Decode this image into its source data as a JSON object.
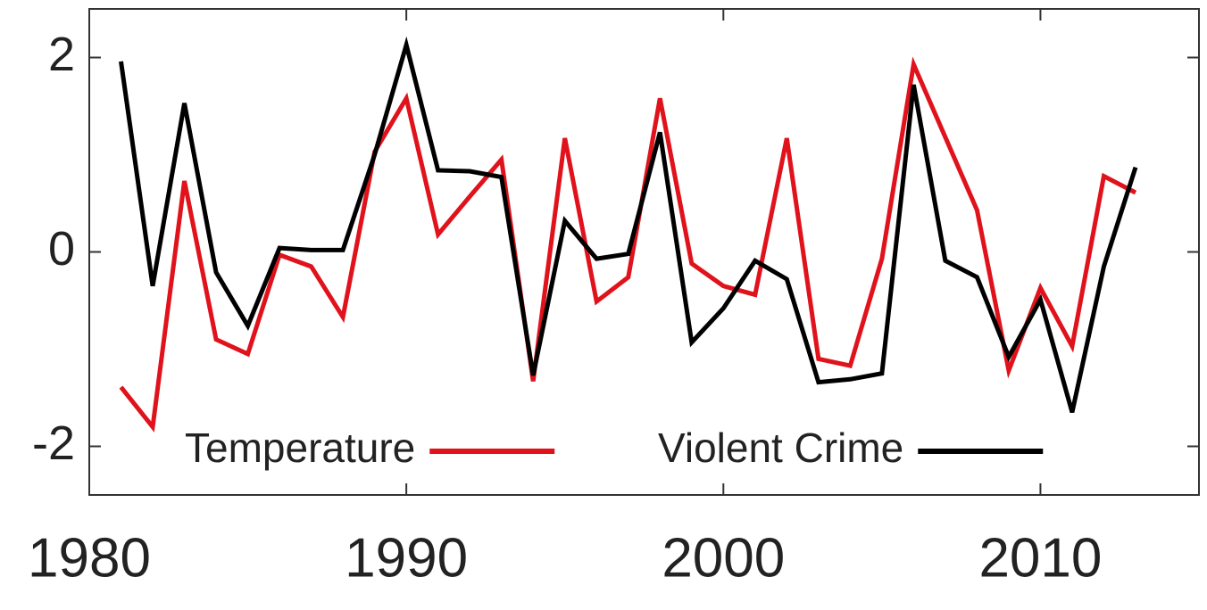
{
  "chart_data": {
    "type": "line",
    "x": [
      1981,
      1982,
      1983,
      1984,
      1985,
      1986,
      1987,
      1988,
      1989,
      1990,
      1991,
      1992,
      1993,
      1994,
      1995,
      1996,
      1997,
      1998,
      1999,
      2000,
      2001,
      2002,
      2003,
      2004,
      2005,
      2006,
      2007,
      2008,
      2009,
      2010,
      2011,
      2012,
      2013
    ],
    "series": [
      {
        "name": "Temperature",
        "color": "#e0121b",
        "values": [
          -1.39,
          -1.8,
          0.73,
          -0.9,
          -1.05,
          -0.03,
          -0.15,
          -0.67,
          1.03,
          1.58,
          0.18,
          0.57,
          0.95,
          -1.33,
          1.17,
          -0.51,
          -0.26,
          1.58,
          -0.12,
          -0.35,
          -0.44,
          1.17,
          -1.1,
          -1.17,
          -0.07,
          1.93,
          1.18,
          0.43,
          -1.22,
          -0.37,
          -0.97,
          0.78,
          0.61
        ]
      },
      {
        "name": "Violent Crime",
        "color": "#000000",
        "values": [
          1.96,
          -0.35,
          1.53,
          -0.21,
          -0.76,
          0.04,
          0.02,
          0.02,
          1.0,
          2.13,
          0.84,
          0.83,
          0.77,
          -1.27,
          0.32,
          -0.07,
          -0.02,
          1.23,
          -0.93,
          -0.58,
          -0.09,
          -0.28,
          -1.34,
          -1.31,
          -1.25,
          1.72,
          -0.09,
          -0.26,
          -1.08,
          -0.49,
          -1.65,
          -0.15,
          0.87
        ]
      }
    ],
    "xlim": [
      1980,
      2015
    ],
    "xticks": [
      1980,
      1990,
      2000,
      2010
    ],
    "ylim": [
      -2.5,
      2.5
    ],
    "yticks": [
      -2,
      0,
      2
    ],
    "grid": false,
    "legend": "bottom"
  }
}
